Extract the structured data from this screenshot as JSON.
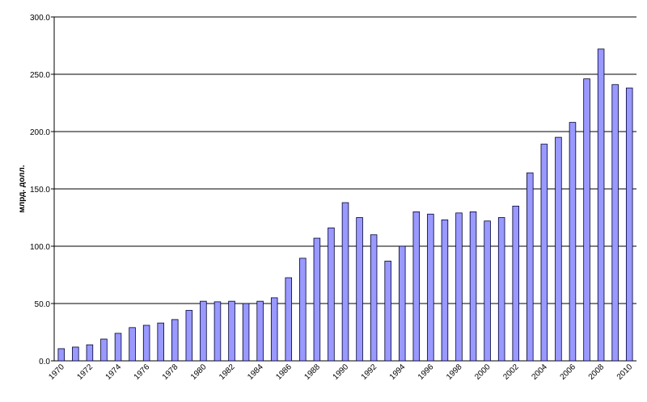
{
  "chart_data": {
    "type": "bar",
    "y_label": "млрд. долл.",
    "categories": [
      "1970",
      null,
      "1972",
      null,
      "1974",
      null,
      "1976",
      null,
      "1978",
      null,
      "1980",
      null,
      "1982",
      null,
      "1984",
      null,
      "1986",
      null,
      "1988",
      null,
      "1990",
      null,
      "1992",
      null,
      "1994",
      null,
      "1996",
      null,
      "1998",
      null,
      "2000",
      null,
      "2002",
      null,
      "2004",
      null,
      "2006",
      null,
      "2008",
      null,
      "2010"
    ],
    "values": [
      10.6,
      12,
      14,
      19,
      24,
      29,
      31,
      33,
      36,
      44,
      52,
      51.5,
      52,
      50,
      52,
      55,
      72.5,
      89.5,
      107,
      116,
      138,
      125,
      110,
      87,
      100,
      130,
      128,
      123,
      129,
      130,
      122,
      125,
      135,
      164,
      189,
      195,
      208,
      246,
      272,
      241,
      238
    ],
    "color": "#9999ff",
    "ylim": [
      0,
      300
    ],
    "yticks": [
      {
        "value": 0,
        "label": "0.0"
      },
      {
        "value": 50,
        "label": "50.0"
      },
      {
        "value": 100,
        "label": "100.0"
      },
      {
        "value": 150,
        "label": "150.0"
      },
      {
        "value": 200,
        "label": "200.0"
      },
      {
        "value": 250,
        "label": "250.0"
      },
      {
        "value": 300,
        "label": "300.0"
      }
    ],
    "grid": true
  }
}
